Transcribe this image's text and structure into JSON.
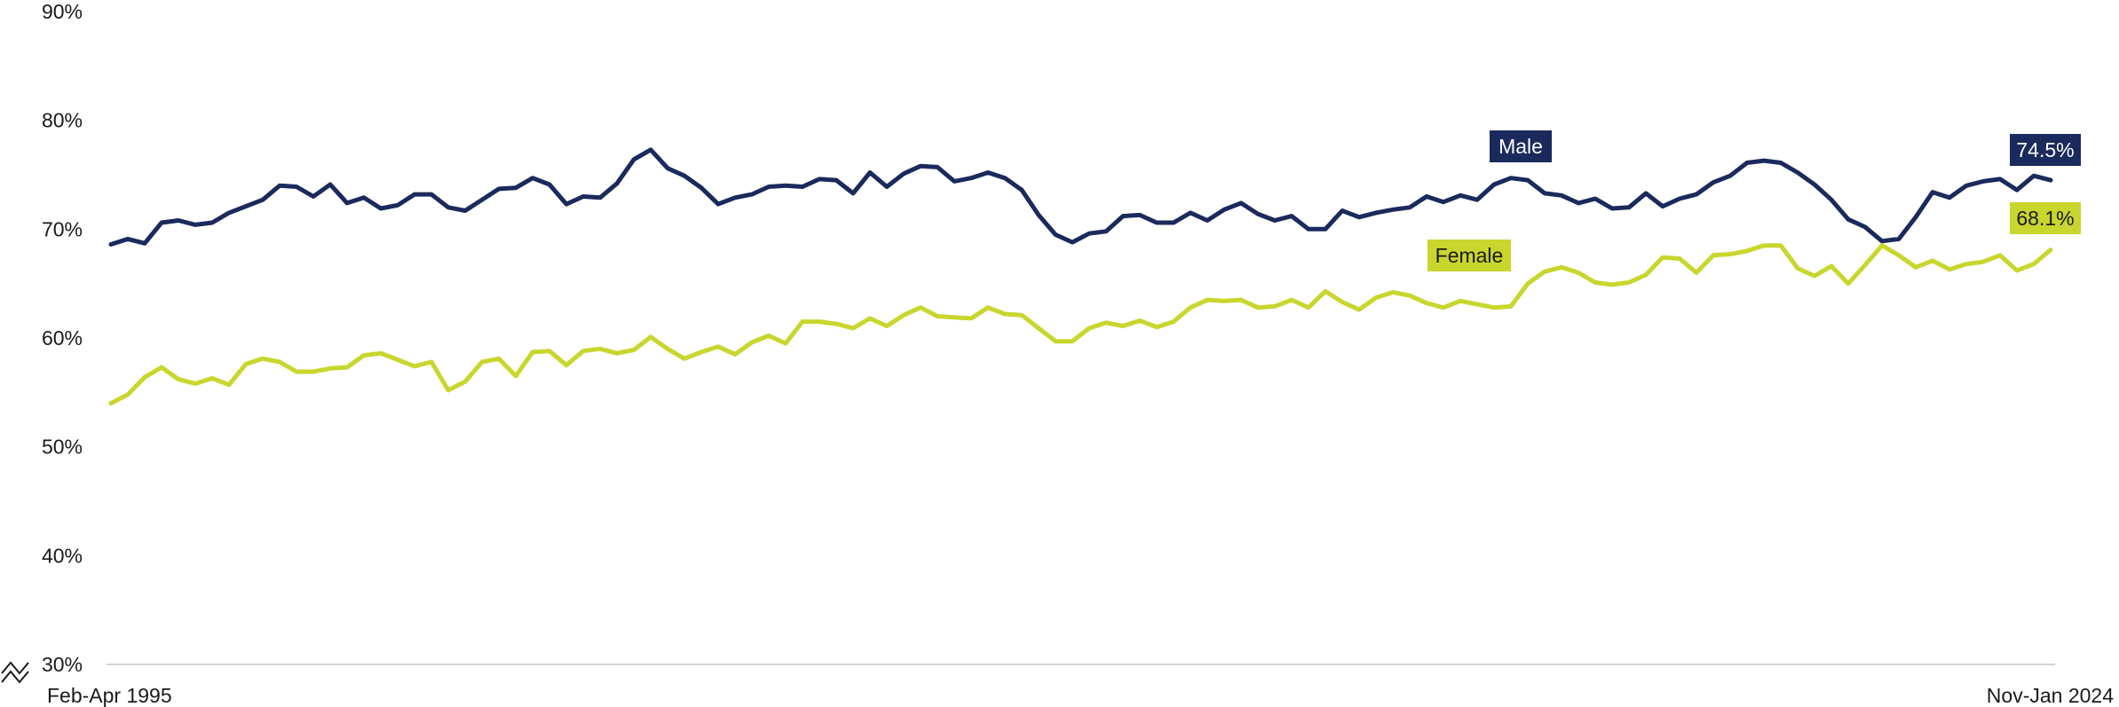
{
  "chart_data": {
    "type": "line",
    "x_labels": {
      "start": "Feb-Apr 1995",
      "end": "Nov-Jan 2024"
    },
    "y_ticks": [
      "90%",
      "80%",
      "70%",
      "60%",
      "50%",
      "40%",
      "30%"
    ],
    "ylim": [
      30,
      90
    ],
    "y_axis_break": true,
    "grid": false,
    "series": [
      {
        "name": "Male",
        "color": "#1b2a5c",
        "end_label": "74.5%",
        "values": [
          68.6,
          69.1,
          68.7,
          70.6,
          70.8,
          70.4,
          70.6,
          71.5,
          72.1,
          72.7,
          74.0,
          73.9,
          73.0,
          74.1,
          72.4,
          72.9,
          71.9,
          72.2,
          73.2,
          73.2,
          72.0,
          71.7,
          72.7,
          73.7,
          73.8,
          74.7,
          74.1,
          72.3,
          73.0,
          72.9,
          74.2,
          76.4,
          77.3,
          75.6,
          74.9,
          73.8,
          72.3,
          72.9,
          73.2,
          73.9,
          74.0,
          73.9,
          74.6,
          74.5,
          73.3,
          75.2,
          73.9,
          75.1,
          75.8,
          75.7,
          74.4,
          74.7,
          75.2,
          74.7,
          73.6,
          71.3,
          69.5,
          68.8,
          69.6,
          69.8,
          71.2,
          71.3,
          70.6,
          70.6,
          71.5,
          70.8,
          71.8,
          72.4,
          71.4,
          70.8,
          71.2,
          70.0,
          70.0,
          71.7,
          71.1,
          71.5,
          71.8,
          72.0,
          73.0,
          72.5,
          73.1,
          72.7,
          74.1,
          74.7,
          74.5,
          73.3,
          73.1,
          72.4,
          72.8,
          71.9,
          72.0,
          73.3,
          72.1,
          72.8,
          73.2,
          74.3,
          74.9,
          76.1,
          76.3,
          76.1,
          75.2,
          74.1,
          72.7,
          70.9,
          70.2,
          68.9,
          69.1,
          71.1,
          73.4,
          72.9,
          74.0,
          74.4,
          74.6,
          73.6,
          74.9,
          74.5
        ]
      },
      {
        "name": "Female",
        "color": "#c8d62d",
        "end_label": "68.1%",
        "values": [
          54.0,
          54.8,
          56.4,
          57.3,
          56.2,
          55.8,
          56.3,
          55.7,
          57.6,
          58.1,
          57.8,
          56.9,
          56.9,
          57.2,
          57.3,
          58.4,
          58.6,
          58.0,
          57.4,
          57.8,
          55.2,
          56.0,
          57.8,
          58.1,
          56.5,
          58.7,
          58.8,
          57.5,
          58.8,
          59.0,
          58.6,
          58.9,
          60.1,
          59.0,
          58.1,
          58.7,
          59.2,
          58.5,
          59.6,
          60.2,
          59.5,
          61.5,
          61.5,
          61.3,
          60.9,
          61.8,
          61.1,
          62.1,
          62.8,
          62.0,
          61.9,
          61.8,
          62.8,
          62.2,
          62.1,
          60.9,
          59.7,
          59.7,
          60.9,
          61.4,
          61.1,
          61.6,
          61.0,
          61.5,
          62.8,
          63.5,
          63.4,
          63.5,
          62.8,
          62.9,
          63.5,
          62.8,
          64.3,
          63.3,
          62.6,
          63.7,
          64.2,
          63.9,
          63.2,
          62.8,
          63.4,
          63.1,
          62.8,
          62.9,
          65.0,
          66.1,
          66.5,
          66.0,
          65.1,
          64.9,
          65.1,
          65.8,
          67.4,
          67.3,
          66.0,
          67.6,
          67.7,
          68.0,
          68.5,
          68.5,
          66.4,
          65.7,
          66.6,
          65.0,
          66.7,
          68.5,
          67.6,
          66.5,
          67.1,
          66.3,
          66.8,
          67.0,
          67.6,
          66.2,
          66.8,
          68.1
        ]
      }
    ]
  }
}
